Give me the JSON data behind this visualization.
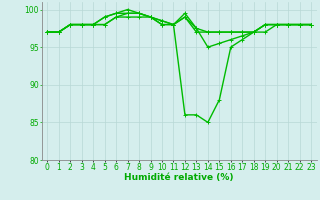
{
  "lines": [
    [
      97,
      97,
      98,
      98,
      98,
      98,
      99,
      99,
      99,
      99,
      98,
      98,
      99,
      97,
      97,
      97,
      97,
      97,
      97,
      98,
      98,
      98,
      98,
      98
    ],
    [
      97,
      97,
      98,
      98,
      98,
      98,
      99,
      99.5,
      99.5,
      99,
      98,
      98,
      99.5,
      97.5,
      95,
      95.5,
      96,
      96.5,
      97,
      98,
      98,
      98,
      98,
      98
    ],
    [
      97,
      97,
      98,
      98,
      98,
      99,
      99.5,
      100,
      99.5,
      99,
      98.5,
      98,
      86,
      86,
      85,
      88,
      95,
      96,
      97,
      97,
      98,
      98,
      98,
      98
    ],
    [
      97,
      97,
      98,
      98,
      98,
      99,
      99.5,
      99.5,
      99.5,
      99,
      98.5,
      98,
      99,
      97.5,
      97,
      97,
      97,
      97,
      97,
      98,
      98,
      98,
      98,
      98
    ]
  ],
  "x": [
    0,
    1,
    2,
    3,
    4,
    5,
    6,
    7,
    8,
    9,
    10,
    11,
    12,
    13,
    14,
    15,
    16,
    17,
    18,
    19,
    20,
    21,
    22,
    23
  ],
  "ylim": [
    80,
    101
  ],
  "yticks": [
    80,
    85,
    90,
    95,
    100
  ],
  "xlabel": "Humidité relative (%)",
  "line_color": "#00bb00",
  "bg_color": "#d5eeed",
  "grid_color": "#b8d8d5",
  "marker": "+",
  "marker_size": 3,
  "linewidth": 1.0,
  "xlabel_fontsize": 6.5,
  "tick_fontsize": 5.5,
  "xlabel_color": "#00aa00",
  "tick_color": "#00aa00",
  "spine_color": "#888888"
}
